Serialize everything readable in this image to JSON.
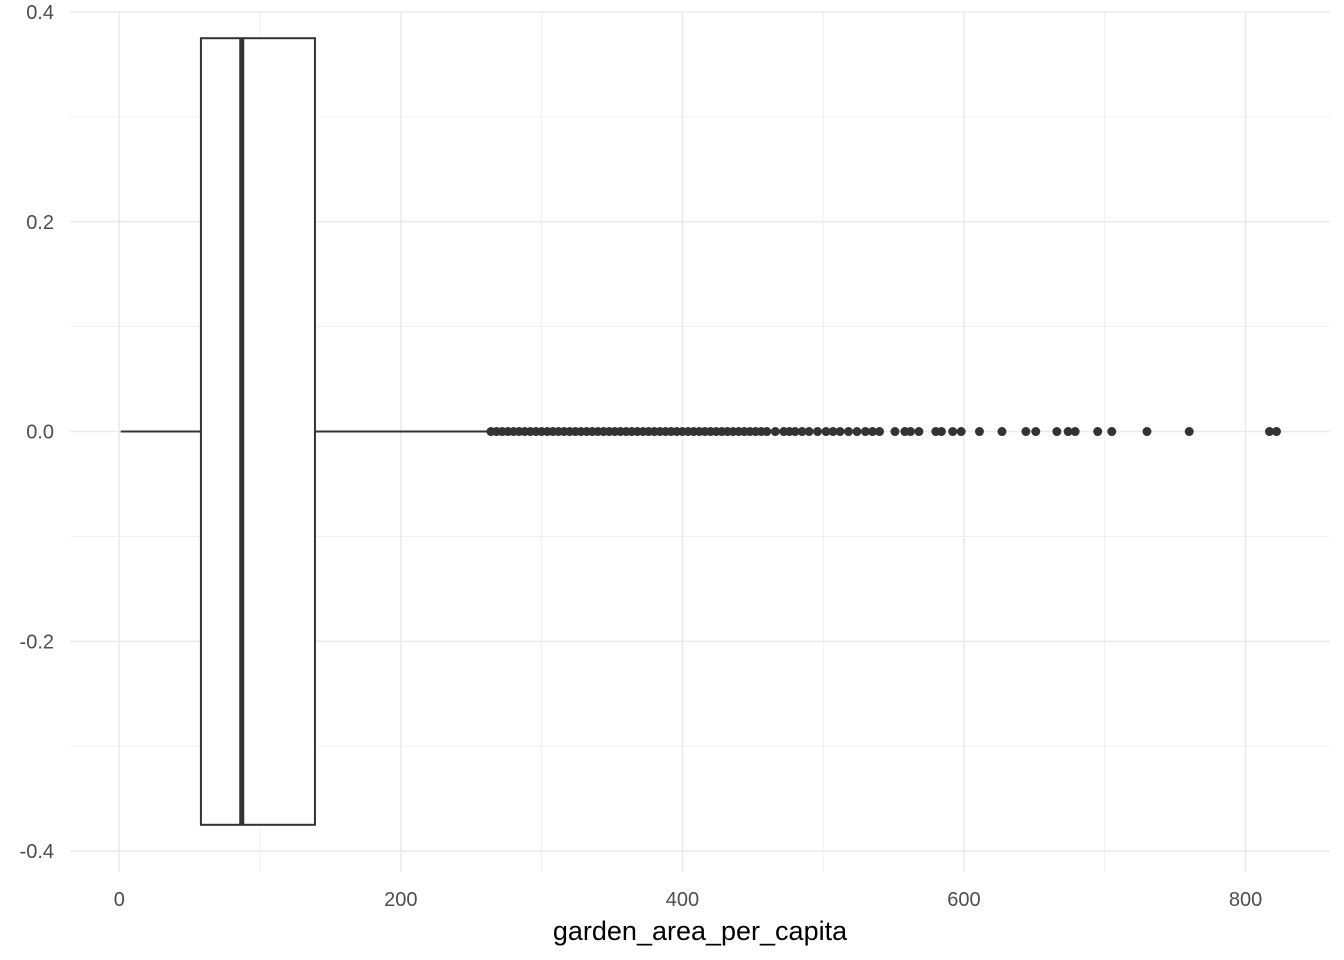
{
  "chart_data": {
    "type": "boxplot",
    "title": "",
    "xlabel": "garden_area_per_capita",
    "ylabel": "",
    "xlim": [
      -35,
      860
    ],
    "ylim": [
      -0.42,
      0.4
    ],
    "x_ticks": [
      0,
      200,
      400,
      600,
      800
    ],
    "x_tick_labels": [
      "0",
      "200",
      "400",
      "600",
      "800"
    ],
    "y_ticks": [
      -0.4,
      -0.2,
      0.0,
      0.2,
      0.4
    ],
    "y_tick_labels": [
      "-0.4",
      "-0.2",
      "0.0",
      "0.2",
      "0.4"
    ],
    "grid": true,
    "box": {
      "whisker_low": 1,
      "q1": 58,
      "median": 87,
      "q3": 139,
      "whisker_high": 262,
      "box_half_width": 0.375
    },
    "outliers": [
      264,
      268,
      272,
      276,
      280,
      284,
      288,
      292,
      296,
      300,
      304,
      308,
      312,
      316,
      320,
      324,
      328,
      332,
      336,
      340,
      344,
      348,
      352,
      356,
      360,
      364,
      368,
      372,
      376,
      380,
      384,
      388,
      392,
      396,
      400,
      404,
      408,
      412,
      416,
      420,
      424,
      428,
      432,
      436,
      440,
      444,
      448,
      452,
      456,
      460,
      466,
      472,
      476,
      480,
      485,
      490,
      496,
      502,
      507,
      512,
      518,
      524,
      530,
      535,
      540,
      551,
      558,
      562,
      568,
      580,
      584,
      592,
      598,
      611,
      627,
      644,
      651,
      666,
      674,
      679,
      695,
      705,
      730,
      760,
      817,
      822
    ],
    "colors": {
      "box_outline": "#333333",
      "outlier": "#333333",
      "grid": "#ebebeb"
    }
  }
}
